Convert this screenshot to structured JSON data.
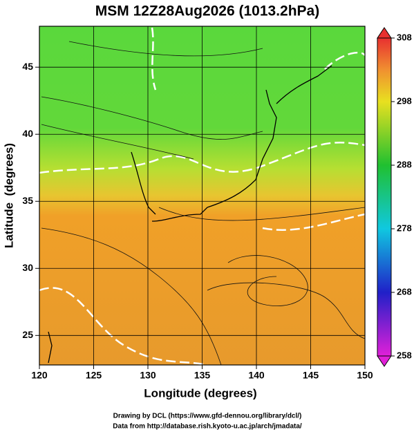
{
  "title": "MSM 12Z28Aug2026 (1013.2hPa)",
  "x_axis": {
    "label": "Longitude (degrees)",
    "lim": [
      120,
      150
    ],
    "ticks": [
      120,
      125,
      130,
      135,
      140,
      145,
      150
    ]
  },
  "y_axis": {
    "label": "Latitude  (degrees)",
    "lim": [
      22.8,
      48.05
    ],
    "ticks": [
      25,
      30,
      35,
      40,
      45
    ]
  },
  "colorbar": {
    "lim": [
      258,
      308
    ],
    "ticks": [
      258,
      268,
      278,
      288,
      298,
      308
    ]
  },
  "credits": [
    "Drawing by DCL (https://www.gfd-dennou.org/library/dcl/)",
    "Data from http://database.rish.kyoto-u.ac.jp/arch/jmadata/"
  ]
}
